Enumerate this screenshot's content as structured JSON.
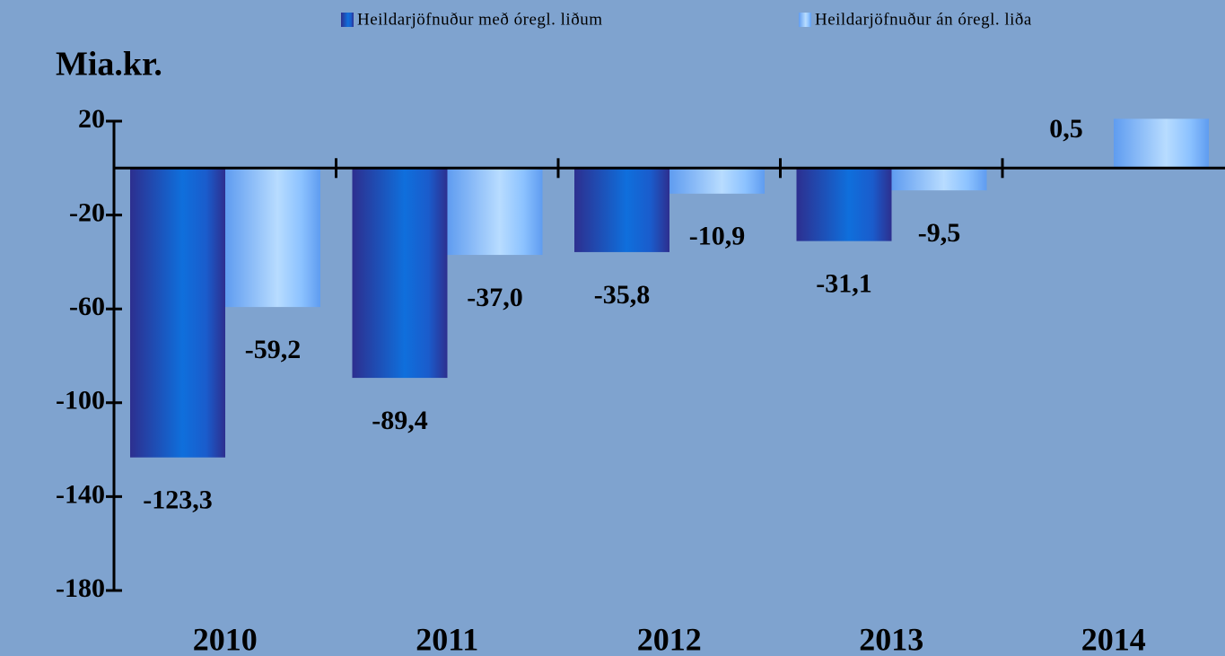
{
  "chart_data": {
    "type": "bar",
    "y_label": "Mia.kr.",
    "categories": [
      "2010",
      "2011",
      "2012",
      "2013",
      "2014"
    ],
    "series": [
      {
        "name": "Heildarjöfnuður með óregl. liðum",
        "color": "#1a5ccc",
        "values": [
          -123.3,
          -89.4,
          -35.8,
          -31.1,
          0.5
        ],
        "value_labels": [
          "-123,3",
          "-89,4",
          "-35,8",
          "-31,1",
          "0,5"
        ]
      },
      {
        "name": "Heildarjöfnuður án óregl. liða",
        "color": "#8cc2ff",
        "values": [
          -59.2,
          -37.0,
          -10.9,
          -9.5,
          21
        ],
        "value_labels": [
          "-59,2",
          "-37,0",
          "-10,9",
          "-9,5",
          null
        ]
      }
    ],
    "ylim": [
      -180,
      20
    ],
    "yticks": [
      20,
      -20,
      -60,
      -100,
      -140,
      -180
    ],
    "legend": "top"
  }
}
